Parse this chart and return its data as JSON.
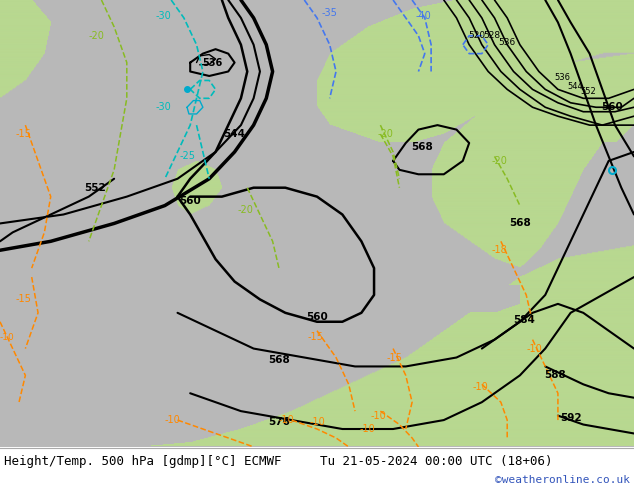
{
  "title_left": "Height/Temp. 500 hPa [gdmp][°C] ECMWF",
  "title_right": "Tu 21-05-2024 00:00 UTC (18+06)",
  "copyright": "©weatheronline.co.uk",
  "land_green": "#b8d890",
  "ocean_gray": "#b8b8b8",
  "footer_bg": "#ffffff",
  "text_color_copyright": "#3355bb",
  "contour_black_lw": 1.5,
  "contour_thick_lw": 2.2
}
